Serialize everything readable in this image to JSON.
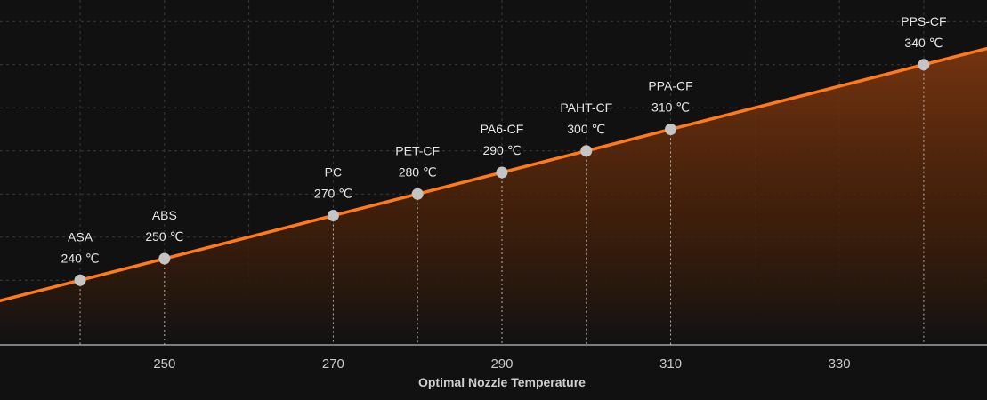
{
  "chart_data": {
    "type": "area",
    "xlabel": "Optimal Nozzle Temperature",
    "xlim": [
      230.5,
      347.5
    ],
    "ylim": [
      210,
      370
    ],
    "x_ticks": [
      250,
      270,
      290,
      310,
      330
    ],
    "x_tick_labels": [
      "250",
      "270",
      "290",
      "310",
      "330"
    ],
    "unit": "℃",
    "grid": true,
    "points": [
      {
        "name": "ASA",
        "x": 240,
        "temp_label": "240 ℃"
      },
      {
        "name": "ABS",
        "x": 250,
        "temp_label": "250 ℃"
      },
      {
        "name": "PC",
        "x": 270,
        "temp_label": "270 ℃"
      },
      {
        "name": "PET-CF",
        "x": 280,
        "temp_label": "280 ℃"
      },
      {
        "name": "PA6-CF",
        "x": 290,
        "temp_label": "290 ℃"
      },
      {
        "name": "PAHT-CF",
        "x": 300,
        "temp_label": "300 ℃"
      },
      {
        "name": "PPA-CF",
        "x": 310,
        "temp_label": "310 ℃"
      },
      {
        "name": "PPS-CF",
        "x": 340,
        "temp_label": "340 ℃"
      }
    ],
    "colors": {
      "line": "#ff7a1a",
      "fill_top": "#7a3610",
      "fill_bottom": "#111111",
      "marker": "#c4c4c4",
      "grid": "#3a3a3a",
      "axis": "#bdbdbd"
    }
  }
}
